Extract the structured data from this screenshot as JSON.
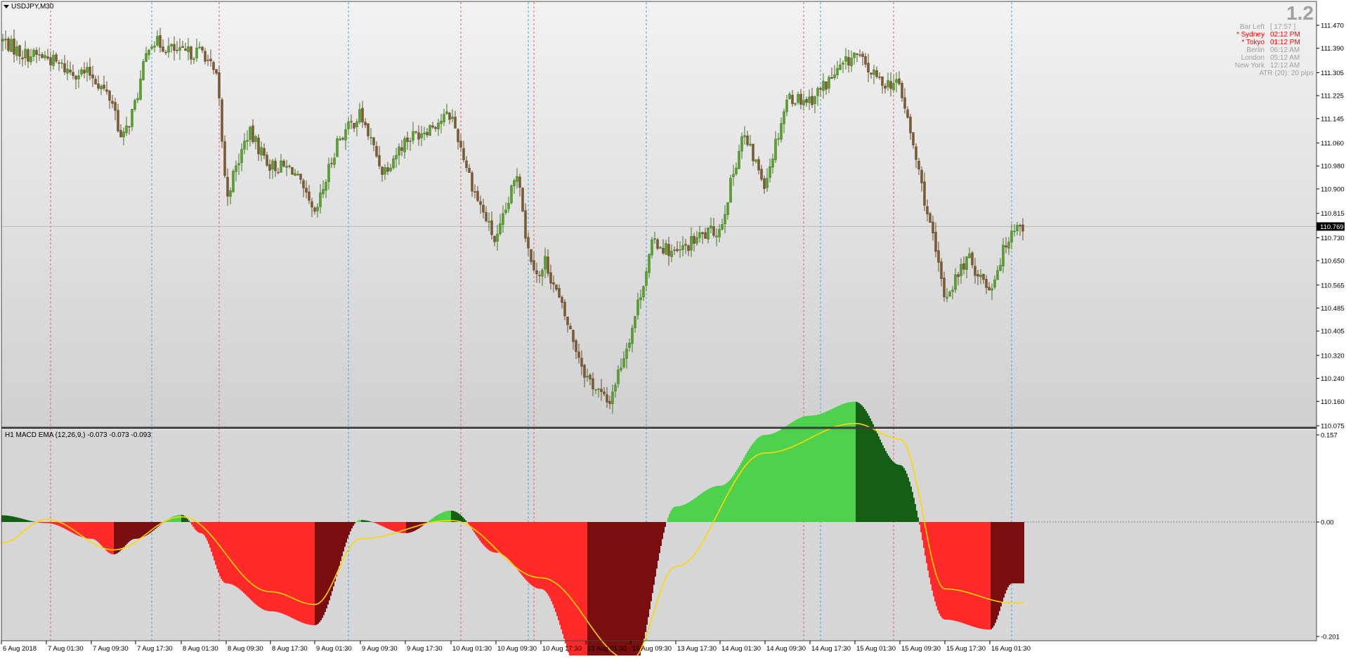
{
  "main_chart": {
    "symbol_label": "USDJPY,M30",
    "menu_icon": "triangle-down-icon",
    "big_value": "1.2",
    "current_price": "110.769",
    "price_ticks": [
      "111.470",
      "111.390",
      "111.305",
      "111.225",
      "111.145",
      "111.060",
      "110.980",
      "110.900",
      "110.815",
      "110.730",
      "110.650",
      "110.565",
      "110.485",
      "110.405",
      "110.320",
      "110.240",
      "110.160",
      "110.075"
    ]
  },
  "info_panel": {
    "rows": [
      {
        "label": "Bar Left",
        "value": "[ 17:57 ]",
        "color": "#a0a0a0"
      },
      {
        "label": "* Sydney",
        "value": "02:12 PM",
        "color": "#ff0000"
      },
      {
        "label": "* Tokyo",
        "value": "01:12 PM",
        "color": "#ff0000"
      },
      {
        "label": "Berlin",
        "value": "06:12 AM",
        "color": "#a0a0a0"
      },
      {
        "label": "London",
        "value": "05:12 AM",
        "color": "#a0a0a0"
      },
      {
        "label": "New York",
        "value": "12:12 AM",
        "color": "#a0a0a0"
      }
    ],
    "atr": "ATR (20): 20 pips"
  },
  "indicator": {
    "label": "H1 MACD EMA (12,26,9,) -0.073 -0.073 -0.093",
    "ticks": [
      "0.157",
      "0.00",
      "-0.201"
    ]
  },
  "time_axis": {
    "labels": [
      "6 Aug 2018",
      "7 Aug 01:30",
      "7 Aug 09:30",
      "7 Aug 17:30",
      "8 Aug 01:30",
      "8 Aug 09:30",
      "8 Aug 17:30",
      "9 Aug 01:30",
      "9 Aug 09:30",
      "9 Aug 17:30",
      "10 Aug 01:30",
      "10 Aug 09:30",
      "10 Aug 17:30",
      "13 Aug 01:30",
      "13 Aug 09:30",
      "13 Aug 17:30",
      "14 Aug 01:30",
      "14 Aug 09:30",
      "14 Aug 17:30",
      "15 Aug 01:30",
      "15 Aug 09:30",
      "15 Aug 17:30",
      "16 Aug 01:30"
    ]
  },
  "colors": {
    "background": "#d4d4d4",
    "bull_candle": "#3c7a1e",
    "bear_candle": "#6b4a2a",
    "macd_pos_light": "#4ed24e",
    "macd_pos_dark": "#145f14",
    "macd_neg_light": "#ff2a2a",
    "macd_neg_dark": "#7a0d0d",
    "signal_line": "#ffd700",
    "session_red": "#e06060",
    "session_blue": "#3aa8e0"
  },
  "chart_data": [
    {
      "type": "candlestick",
      "title": "USDJPY,M30",
      "y_range": [
        110.075,
        111.51
      ],
      "x_range": [
        "6 Aug 2018",
        "16 Aug 01:30"
      ],
      "current_price": 110.769,
      "close_path": [
        {
          "time": "6 Aug 2018",
          "close": 111.42
        },
        {
          "time": "6 Aug 12:00",
          "close": 111.37
        },
        {
          "time": "7 Aug 01:30",
          "close": 111.36
        },
        {
          "time": "7 Aug 05:30",
          "close": 111.31
        },
        {
          "time": "7 Aug 09:30",
          "close": 111.3
        },
        {
          "time": "7 Aug 13:30",
          "close": 111.2
        },
        {
          "time": "7 Aug 15:00",
          "close": 111.06
        },
        {
          "time": "7 Aug 17:30",
          "close": 111.2
        },
        {
          "time": "7 Aug 20:00",
          "close": 111.42
        },
        {
          "time": "8 Aug 01:30",
          "close": 111.37
        },
        {
          "time": "8 Aug 05:30",
          "close": 111.38
        },
        {
          "time": "8 Aug 08:00",
          "close": 111.27
        },
        {
          "time": "8 Aug 09:30",
          "close": 110.87
        },
        {
          "time": "8 Aug 13:30",
          "close": 111.1
        },
        {
          "time": "8 Aug 17:30",
          "close": 110.98
        },
        {
          "time": "8 Aug 21:30",
          "close": 110.97
        },
        {
          "time": "9 Aug 01:30",
          "close": 110.8
        },
        {
          "time": "9 Aug 05:30",
          "close": 111.07
        },
        {
          "time": "9 Aug 09:30",
          "close": 111.16
        },
        {
          "time": "9 Aug 13:30",
          "close": 110.96
        },
        {
          "time": "9 Aug 17:30",
          "close": 111.07
        },
        {
          "time": "10 Aug 01:30",
          "close": 111.16
        },
        {
          "time": "10 Aug 05:30",
          "close": 110.9
        },
        {
          "time": "10 Aug 09:30",
          "close": 110.71
        },
        {
          "time": "10 Aug 13:30",
          "close": 110.97
        },
        {
          "time": "10 Aug 15:00",
          "close": 110.7
        },
        {
          "time": "10 Aug 17:30",
          "close": 110.58
        },
        {
          "time": "10 Aug 21:30",
          "close": 110.66
        },
        {
          "time": "13 Aug 01:30",
          "close": 110.25
        },
        {
          "time": "13 Aug 05:30",
          "close": 110.15
        },
        {
          "time": "13 Aug 09:30",
          "close": 110.4
        },
        {
          "time": "13 Aug 13:30",
          "close": 110.72
        },
        {
          "time": "13 Aug 17:30",
          "close": 110.67
        },
        {
          "time": "13 Aug 21:30",
          "close": 110.73
        },
        {
          "time": "14 Aug 01:30",
          "close": 110.76
        },
        {
          "time": "14 Aug 05:30",
          "close": 111.09
        },
        {
          "time": "14 Aug 09:30",
          "close": 110.92
        },
        {
          "time": "14 Aug 13:30",
          "close": 111.22
        },
        {
          "time": "14 Aug 17:30",
          "close": 111.21
        },
        {
          "time": "15 Aug 01:30",
          "close": 111.37
        },
        {
          "time": "15 Aug 05:30",
          "close": 111.28
        },
        {
          "time": "15 Aug 09:30",
          "close": 111.26
        },
        {
          "time": "15 Aug 13:30",
          "close": 110.9
        },
        {
          "time": "15 Aug 17:30",
          "close": 110.52
        },
        {
          "time": "15 Aug 21:30",
          "close": 110.66
        },
        {
          "time": "16 Aug 01:30",
          "close": 110.55
        },
        {
          "time": "16 Aug 05:30",
          "close": 110.77
        }
      ]
    },
    {
      "type": "bar",
      "title": "H1 MACD EMA (12,26,9,) -0.073 -0.073 -0.093",
      "y_range": [
        -0.201,
        0.157
      ],
      "zero_line": 0.0,
      "macd_path": [
        {
          "time": "6 Aug 2018",
          "value": 0.013
        },
        {
          "time": "7 Aug 01:30",
          "value": -0.002
        },
        {
          "time": "7 Aug 09:30",
          "value": -0.03
        },
        {
          "time": "7 Aug 13:30",
          "value": -0.058
        },
        {
          "time": "7 Aug 17:30",
          "value": -0.03
        },
        {
          "time": "8 Aug 01:30",
          "value": 0.014
        },
        {
          "time": "8 Aug 05:00",
          "value": -0.02
        },
        {
          "time": "8 Aug 09:30",
          "value": -0.11
        },
        {
          "time": "8 Aug 17:30",
          "value": -0.16
        },
        {
          "time": "9 Aug 01:30",
          "value": -0.185
        },
        {
          "time": "9 Aug 09:30",
          "value": 0.004
        },
        {
          "time": "9 Aug 17:30",
          "value": -0.02
        },
        {
          "time": "10 Aug 01:30",
          "value": 0.022
        },
        {
          "time": "10 Aug 09:30",
          "value": -0.055
        },
        {
          "time": "10 Aug 17:30",
          "value": -0.12
        },
        {
          "time": "13 Aug 01:30",
          "value": -0.29
        },
        {
          "time": "13 Aug 09:30",
          "value": -0.27
        },
        {
          "time": "13 Aug 17:30",
          "value": 0.03
        },
        {
          "time": "14 Aug 01:30",
          "value": 0.07
        },
        {
          "time": "14 Aug 09:30",
          "value": 0.168
        },
        {
          "time": "14 Aug 17:30",
          "value": 0.205
        },
        {
          "time": "15 Aug 01:30",
          "value": 0.232
        },
        {
          "time": "15 Aug 09:30",
          "value": 0.11
        },
        {
          "time": "15 Aug 17:30",
          "value": -0.175
        },
        {
          "time": "16 Aug 01:30",
          "value": -0.193
        },
        {
          "time": "16 Aug 05:30",
          "value": -0.11
        }
      ],
      "signal_path": [
        {
          "time": "6 Aug 2018",
          "value": -0.038
        },
        {
          "time": "7 Aug 01:30",
          "value": 0.005
        },
        {
          "time": "7 Aug 13:30",
          "value": -0.05
        },
        {
          "time": "8 Aug 01:30",
          "value": 0.01
        },
        {
          "time": "8 Aug 17:30",
          "value": -0.125
        },
        {
          "time": "9 Aug 01:30",
          "value": -0.148
        },
        {
          "time": "9 Aug 09:30",
          "value": -0.03
        },
        {
          "time": "10 Aug 01:30",
          "value": 0.003
        },
        {
          "time": "10 Aug 17:30",
          "value": -0.1
        },
        {
          "time": "13 Aug 09:30",
          "value": -0.248
        },
        {
          "time": "13 Aug 17:30",
          "value": -0.08
        },
        {
          "time": "14 Aug 09:30",
          "value": 0.133
        },
        {
          "time": "15 Aug 01:30",
          "value": 0.19
        },
        {
          "time": "15 Aug 09:30",
          "value": 0.16
        },
        {
          "time": "15 Aug 17:30",
          "value": -0.12
        },
        {
          "time": "16 Aug 05:30",
          "value": -0.145
        }
      ]
    }
  ]
}
